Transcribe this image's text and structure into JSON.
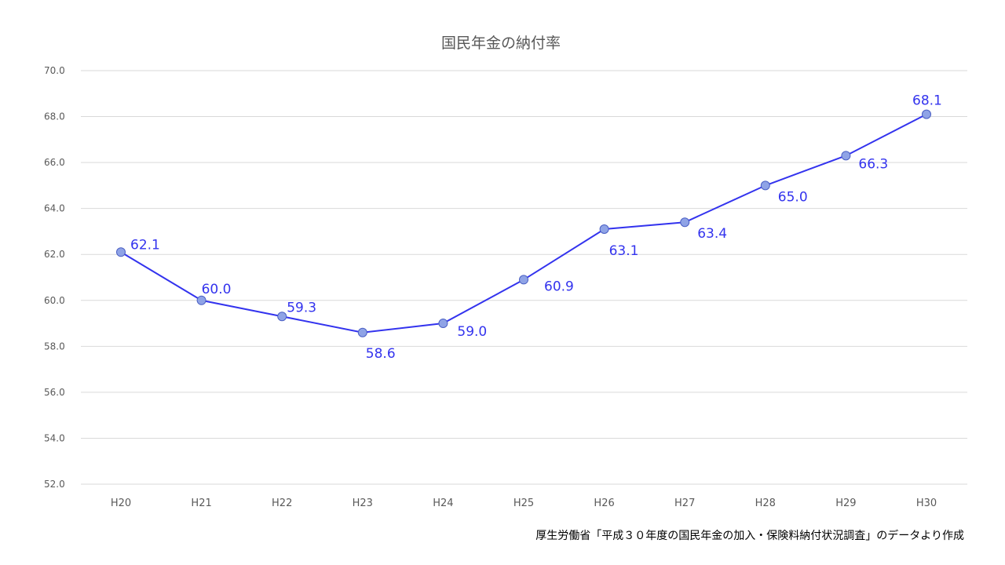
{
  "chart_data": {
    "type": "line",
    "title": "国民年金の納付率",
    "categories": [
      "H20",
      "H21",
      "H22",
      "H23",
      "H24",
      "H25",
      "H26",
      "H27",
      "H28",
      "H29",
      "H30"
    ],
    "series": [
      {
        "values": [
          62.1,
          60.0,
          59.3,
          58.6,
          59.0,
          60.9,
          63.1,
          63.4,
          65.0,
          66.3,
          68.1
        ]
      }
    ],
    "data_labels": [
      "62.1",
      "60.0",
      "59.3",
      "58.6",
      "59.0",
      "60.9",
      "63.1",
      "63.4",
      "65.0",
      "66.3",
      "68.1"
    ],
    "y_ticks": [
      "52.0",
      "54.0",
      "56.0",
      "58.0",
      "60.0",
      "62.0",
      "64.0",
      "66.0",
      "68.0",
      "70.0"
    ],
    "ylim": [
      52,
      70
    ],
    "grid": true,
    "legend": "none",
    "colors": {
      "line": "#3333ee",
      "marker": "#8fa3e6",
      "grid": "#d9d9d9"
    }
  },
  "source_note": "厚生労働省「平成３０年度の国民年金の加入・保険料納付状況調査」のデータより作成"
}
